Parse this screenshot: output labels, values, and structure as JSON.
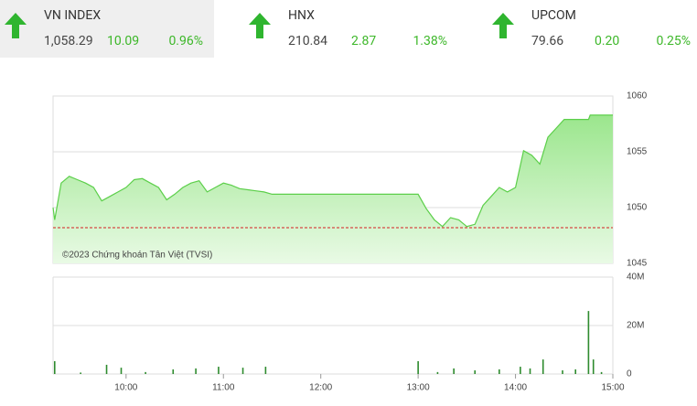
{
  "tickers": [
    {
      "name": "VN INDEX",
      "value": "1,058.29",
      "change": "10.09",
      "percent": "0.96%"
    },
    {
      "name": "HNX",
      "value": "210.84",
      "change": "2.87",
      "percent": "1.38%"
    },
    {
      "name": "UPCOM",
      "value": "79.66",
      "change": "0.20",
      "percent": "0.25%"
    }
  ],
  "chart_data": [
    {
      "type": "line",
      "annotation": "©2023 Chứng khoán Tân Việt (TVSI)",
      "color": "#5ccf4a",
      "reference_line": 1048.2,
      "reference_color": "#d62020",
      "x": [
        "09:15",
        "09:16",
        "09:20",
        "09:25",
        "09:30",
        "09:35",
        "09:40",
        "09:45",
        "09:50",
        "09:55",
        "10:00",
        "10:05",
        "10:10",
        "10:15",
        "10:20",
        "10:25",
        "10:30",
        "10:35",
        "10:40",
        "10:45",
        "10:50",
        "10:55",
        "11:00",
        "11:05",
        "11:10",
        "11:15",
        "11:20",
        "11:25",
        "11:30",
        "13:00",
        "13:05",
        "13:10",
        "13:15",
        "13:20",
        "13:25",
        "13:30",
        "13:35",
        "13:40",
        "13:45",
        "13:50",
        "13:55",
        "14:00",
        "14:05",
        "14:10",
        "14:15",
        "14:20",
        "14:25",
        "14:30",
        "14:45",
        "14:46",
        "15:00"
      ],
      "values": [
        1050.0,
        1048.9,
        1052.2,
        1052.8,
        1052.5,
        1052.2,
        1051.8,
        1050.6,
        1051.0,
        1051.4,
        1051.8,
        1052.5,
        1052.6,
        1052.2,
        1051.8,
        1050.7,
        1051.2,
        1051.8,
        1052.2,
        1052.4,
        1051.4,
        1051.8,
        1052.2,
        1052.0,
        1051.7,
        1051.6,
        1051.5,
        1051.4,
        1051.2,
        1051.2,
        1049.9,
        1048.9,
        1048.3,
        1049.1,
        1048.9,
        1048.3,
        1048.5,
        1050.2,
        1051.0,
        1051.8,
        1051.4,
        1051.8,
        1055.1,
        1054.7,
        1053.9,
        1056.3,
        1057.1,
        1057.9,
        1057.9,
        1058.29,
        1058.29
      ],
      "xlim": [
        "09:15",
        "15:00"
      ],
      "ylim": [
        1045,
        1060
      ],
      "yticks": [
        1045,
        1050,
        1055,
        1060
      ],
      "grid": true
    },
    {
      "type": "bar",
      "color": "#2e8b2e",
      "x": [
        "09:16",
        "09:32",
        "09:48",
        "09:57",
        "10:12",
        "10:29",
        "10:43",
        "10:57",
        "11:12",
        "11:26",
        "13:00",
        "13:12",
        "13:22",
        "13:35",
        "13:50",
        "14:03",
        "14:09",
        "14:17",
        "14:29",
        "14:37",
        "14:45",
        "14:48",
        "14:53"
      ],
      "values": [
        5300000,
        600000,
        3800000,
        2600000,
        800000,
        1900000,
        2300000,
        3000000,
        2600000,
        3000000,
        5300000,
        800000,
        2300000,
        1500000,
        1900000,
        3000000,
        2300000,
        6000000,
        1500000,
        1900000,
        26000000,
        6000000,
        800000
      ],
      "xlim": [
        "09:15",
        "15:00"
      ],
      "xticks": [
        "10:00",
        "11:00",
        "12:00",
        "13:00",
        "14:00",
        "15:00"
      ],
      "ylim": [
        0,
        40000000
      ],
      "yticks": [
        0,
        {
          "value": 20000000,
          "label": "20M"
        },
        {
          "value": 40000000,
          "label": "40M"
        }
      ],
      "grid": true
    }
  ]
}
